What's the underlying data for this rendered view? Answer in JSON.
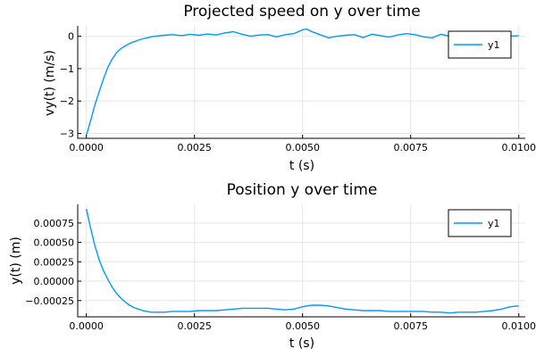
{
  "chart_data": [
    {
      "type": "line",
      "title": "Projected speed on y over time",
      "xlabel": "t (s)",
      "ylabel": "vy(t) (m/s)",
      "xlim": [
        -0.0002,
        0.01015
      ],
      "ylim": [
        -3.15,
        0.32
      ],
      "x_ticks": [
        0.0,
        0.0025,
        0.005,
        0.0075,
        0.01
      ],
      "x_tick_labels": [
        "0.0000",
        "0.0025",
        "0.0050",
        "0.0075",
        "0.0100"
      ],
      "y_ticks": [
        -3,
        -2,
        -1,
        0
      ],
      "y_tick_labels": [
        "−3",
        "−2",
        "−1",
        "0"
      ],
      "grid": true,
      "legend_position": "top-right",
      "series": [
        {
          "name": "y1",
          "color": "#009af9",
          "x": [
            0.0,
            0.0001,
            0.0002,
            0.0003,
            0.0004,
            0.0005,
            0.0006,
            0.0007,
            0.0008,
            0.0009,
            0.001,
            0.0011,
            0.0012,
            0.0013,
            0.0014,
            0.0015,
            0.0016,
            0.0018,
            0.002,
            0.0022,
            0.0024,
            0.0026,
            0.0028,
            0.003,
            0.0032,
            0.0034,
            0.0036,
            0.0038,
            0.004,
            0.0042,
            0.0044,
            0.0046,
            0.0048,
            0.005,
            0.0051,
            0.0052,
            0.0054,
            0.0056,
            0.0058,
            0.006,
            0.0062,
            0.0064,
            0.0066,
            0.0068,
            0.007,
            0.0072,
            0.0074,
            0.0076,
            0.0078,
            0.008,
            0.0082,
            0.0084,
            0.0086,
            0.0088,
            0.009,
            0.0092,
            0.0094,
            0.0096,
            0.0098,
            0.01
          ],
          "values": [
            -3.05,
            -2.6,
            -2.1,
            -1.7,
            -1.3,
            -0.95,
            -0.7,
            -0.5,
            -0.38,
            -0.3,
            -0.22,
            -0.17,
            -0.12,
            -0.08,
            -0.05,
            -0.02,
            0.0,
            0.03,
            0.05,
            0.02,
            0.06,
            0.03,
            0.07,
            0.04,
            0.1,
            0.14,
            0.06,
            0.0,
            0.04,
            0.05,
            -0.02,
            0.05,
            0.08,
            0.2,
            0.22,
            0.15,
            0.05,
            -0.05,
            0.0,
            0.03,
            0.05,
            -0.04,
            0.06,
            0.02,
            -0.03,
            0.04,
            0.08,
            0.05,
            -0.02,
            -0.05,
            0.06,
            0.0,
            -0.06,
            0.03,
            0.06,
            0.0,
            -0.02,
            0.04,
            0.0,
            0.02
          ]
        }
      ]
    },
    {
      "type": "line",
      "title": "Position y over time",
      "xlabel": "t (s)",
      "ylabel": "y(t) (m)",
      "xlim": [
        -0.0002,
        0.01015
      ],
      "ylim": [
        -0.00046,
        0.00099
      ],
      "x_ticks": [
        0.0,
        0.0025,
        0.005,
        0.0075,
        0.01
      ],
      "x_tick_labels": [
        "0.0000",
        "0.0025",
        "0.0050",
        "0.0075",
        "0.0100"
      ],
      "y_ticks": [
        -0.00025,
        0.0,
        0.00025,
        0.0005,
        0.00075
      ],
      "y_tick_labels": [
        "−0.00025",
        "0.00000",
        "0.00025",
        "0.00050",
        "0.00075"
      ],
      "grid": true,
      "legend_position": "top-right",
      "series": [
        {
          "name": "y1",
          "color": "#009af9",
          "x": [
            0.0,
            0.0001,
            0.0002,
            0.0003,
            0.0004,
            0.0005,
            0.0006,
            0.0007,
            0.0008,
            0.0009,
            0.001,
            0.0011,
            0.0012,
            0.0013,
            0.0014,
            0.0015,
            0.0016,
            0.0018,
            0.002,
            0.0022,
            0.0024,
            0.0026,
            0.0028,
            0.003,
            0.0032,
            0.0034,
            0.0036,
            0.0038,
            0.004,
            0.0042,
            0.0044,
            0.0046,
            0.0048,
            0.005,
            0.0052,
            0.0054,
            0.0056,
            0.0058,
            0.006,
            0.0062,
            0.0064,
            0.0066,
            0.0068,
            0.007,
            0.0072,
            0.0074,
            0.0076,
            0.0078,
            0.008,
            0.0082,
            0.0084,
            0.0086,
            0.0088,
            0.009,
            0.0092,
            0.0094,
            0.0096,
            0.0098,
            0.01
          ],
          "values": [
            0.00093,
            0.00068,
            0.00045,
            0.00027,
            0.00013,
            2e-05,
            -8e-05,
            -0.00016,
            -0.00022,
            -0.00027,
            -0.00031,
            -0.00034,
            -0.00036,
            -0.00038,
            -0.00039,
            -0.0004,
            -0.0004,
            -0.0004,
            -0.00039,
            -0.00039,
            -0.00039,
            -0.00038,
            -0.00038,
            -0.00038,
            -0.00037,
            -0.00036,
            -0.00035,
            -0.00035,
            -0.00035,
            -0.00035,
            -0.00036,
            -0.00037,
            -0.00036,
            -0.00033,
            -0.00031,
            -0.00031,
            -0.00032,
            -0.00034,
            -0.00036,
            -0.00037,
            -0.00038,
            -0.00038,
            -0.00038,
            -0.00039,
            -0.00039,
            -0.00039,
            -0.00039,
            -0.00039,
            -0.0004,
            -0.0004,
            -0.00041,
            -0.0004,
            -0.0004,
            -0.0004,
            -0.00039,
            -0.00038,
            -0.00036,
            -0.00033,
            -0.00032
          ]
        }
      ]
    }
  ]
}
